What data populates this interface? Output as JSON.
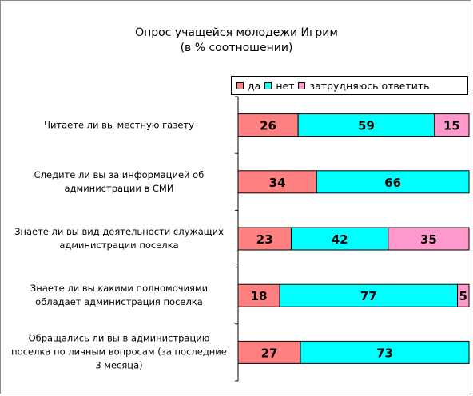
{
  "chart_data": {
    "type": "bar",
    "orientation": "horizontal",
    "stacked": true,
    "title": [
      "Опрос учащейся молодежи Игрим",
      "(в % соотношении)"
    ],
    "legend_position": "top-right",
    "xlim": [
      0,
      100
    ],
    "categories": [
      [
        "Читаете ли вы местную газету"
      ],
      [
        "Следите ли вы за информацией об",
        "администрации в СМИ"
      ],
      [
        "Знаете ли вы вид деятельности служащих",
        "администрации поселка"
      ],
      [
        "Знаете ли вы какими полномочиями",
        "обладает администрация поселка"
      ],
      [
        "Обращались ли вы в администрацию",
        "поселка по личным вопросам (за последние",
        "3 месяца)"
      ]
    ],
    "series": [
      {
        "name": "да",
        "color": "#ff8080",
        "values": [
          26,
          34,
          23,
          18,
          27
        ]
      },
      {
        "name": "нет",
        "color": "#00ffff",
        "values": [
          59,
          66,
          42,
          77,
          73
        ]
      },
      {
        "name": "затрудняюсь ответить",
        "color": "#ff99cc",
        "values": [
          15,
          null,
          35,
          5,
          null
        ]
      }
    ]
  }
}
